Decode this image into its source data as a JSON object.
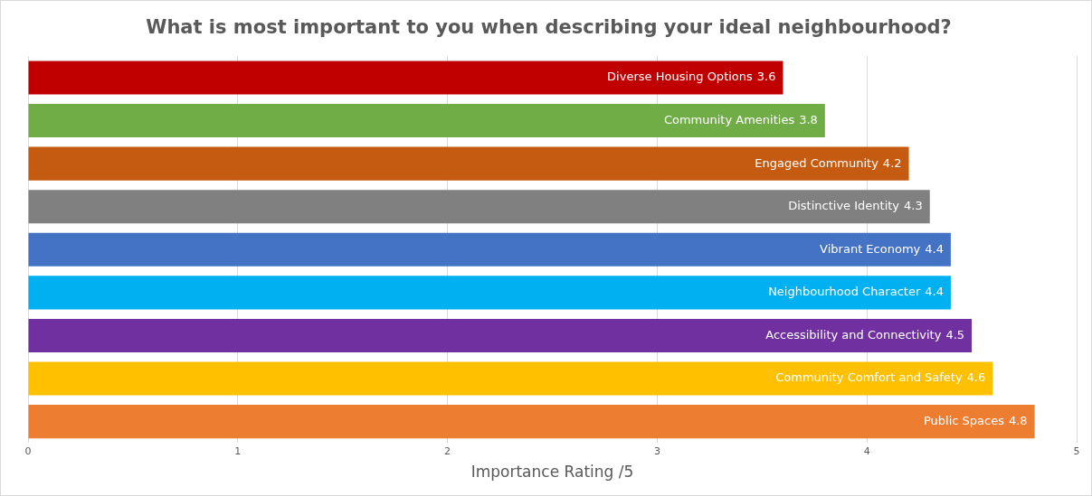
{
  "chart_data": {
    "type": "bar",
    "orientation": "horizontal",
    "title": "What is most important to you when describing your ideal neighbourhood?",
    "xlabel": "Importance Rating /5",
    "categories": [
      "Diverse Housing Options",
      "Community Amenities",
      "Engaged Community",
      "Distinctive Identity",
      "Vibrant Economy",
      "Neighbourhood Character",
      "Accessibility and Connectivity",
      "Community Comfort and Safety",
      "Public Spaces"
    ],
    "values": [
      3.6,
      3.8,
      4.2,
      4.3,
      4.4,
      4.4,
      4.5,
      4.6,
      4.8
    ],
    "colors": [
      "#c00000",
      "#70ad47",
      "#c55a11",
      "#808080",
      "#4472c4",
      "#00b0f0",
      "#7030a0",
      "#ffc000",
      "#ed7d31"
    ],
    "xlim": [
      0,
      5
    ],
    "xticks": [
      0,
      1,
      2,
      3,
      4,
      5
    ],
    "grid": "x",
    "tick_labels": "x",
    "data_labels": true,
    "legend": false
  }
}
